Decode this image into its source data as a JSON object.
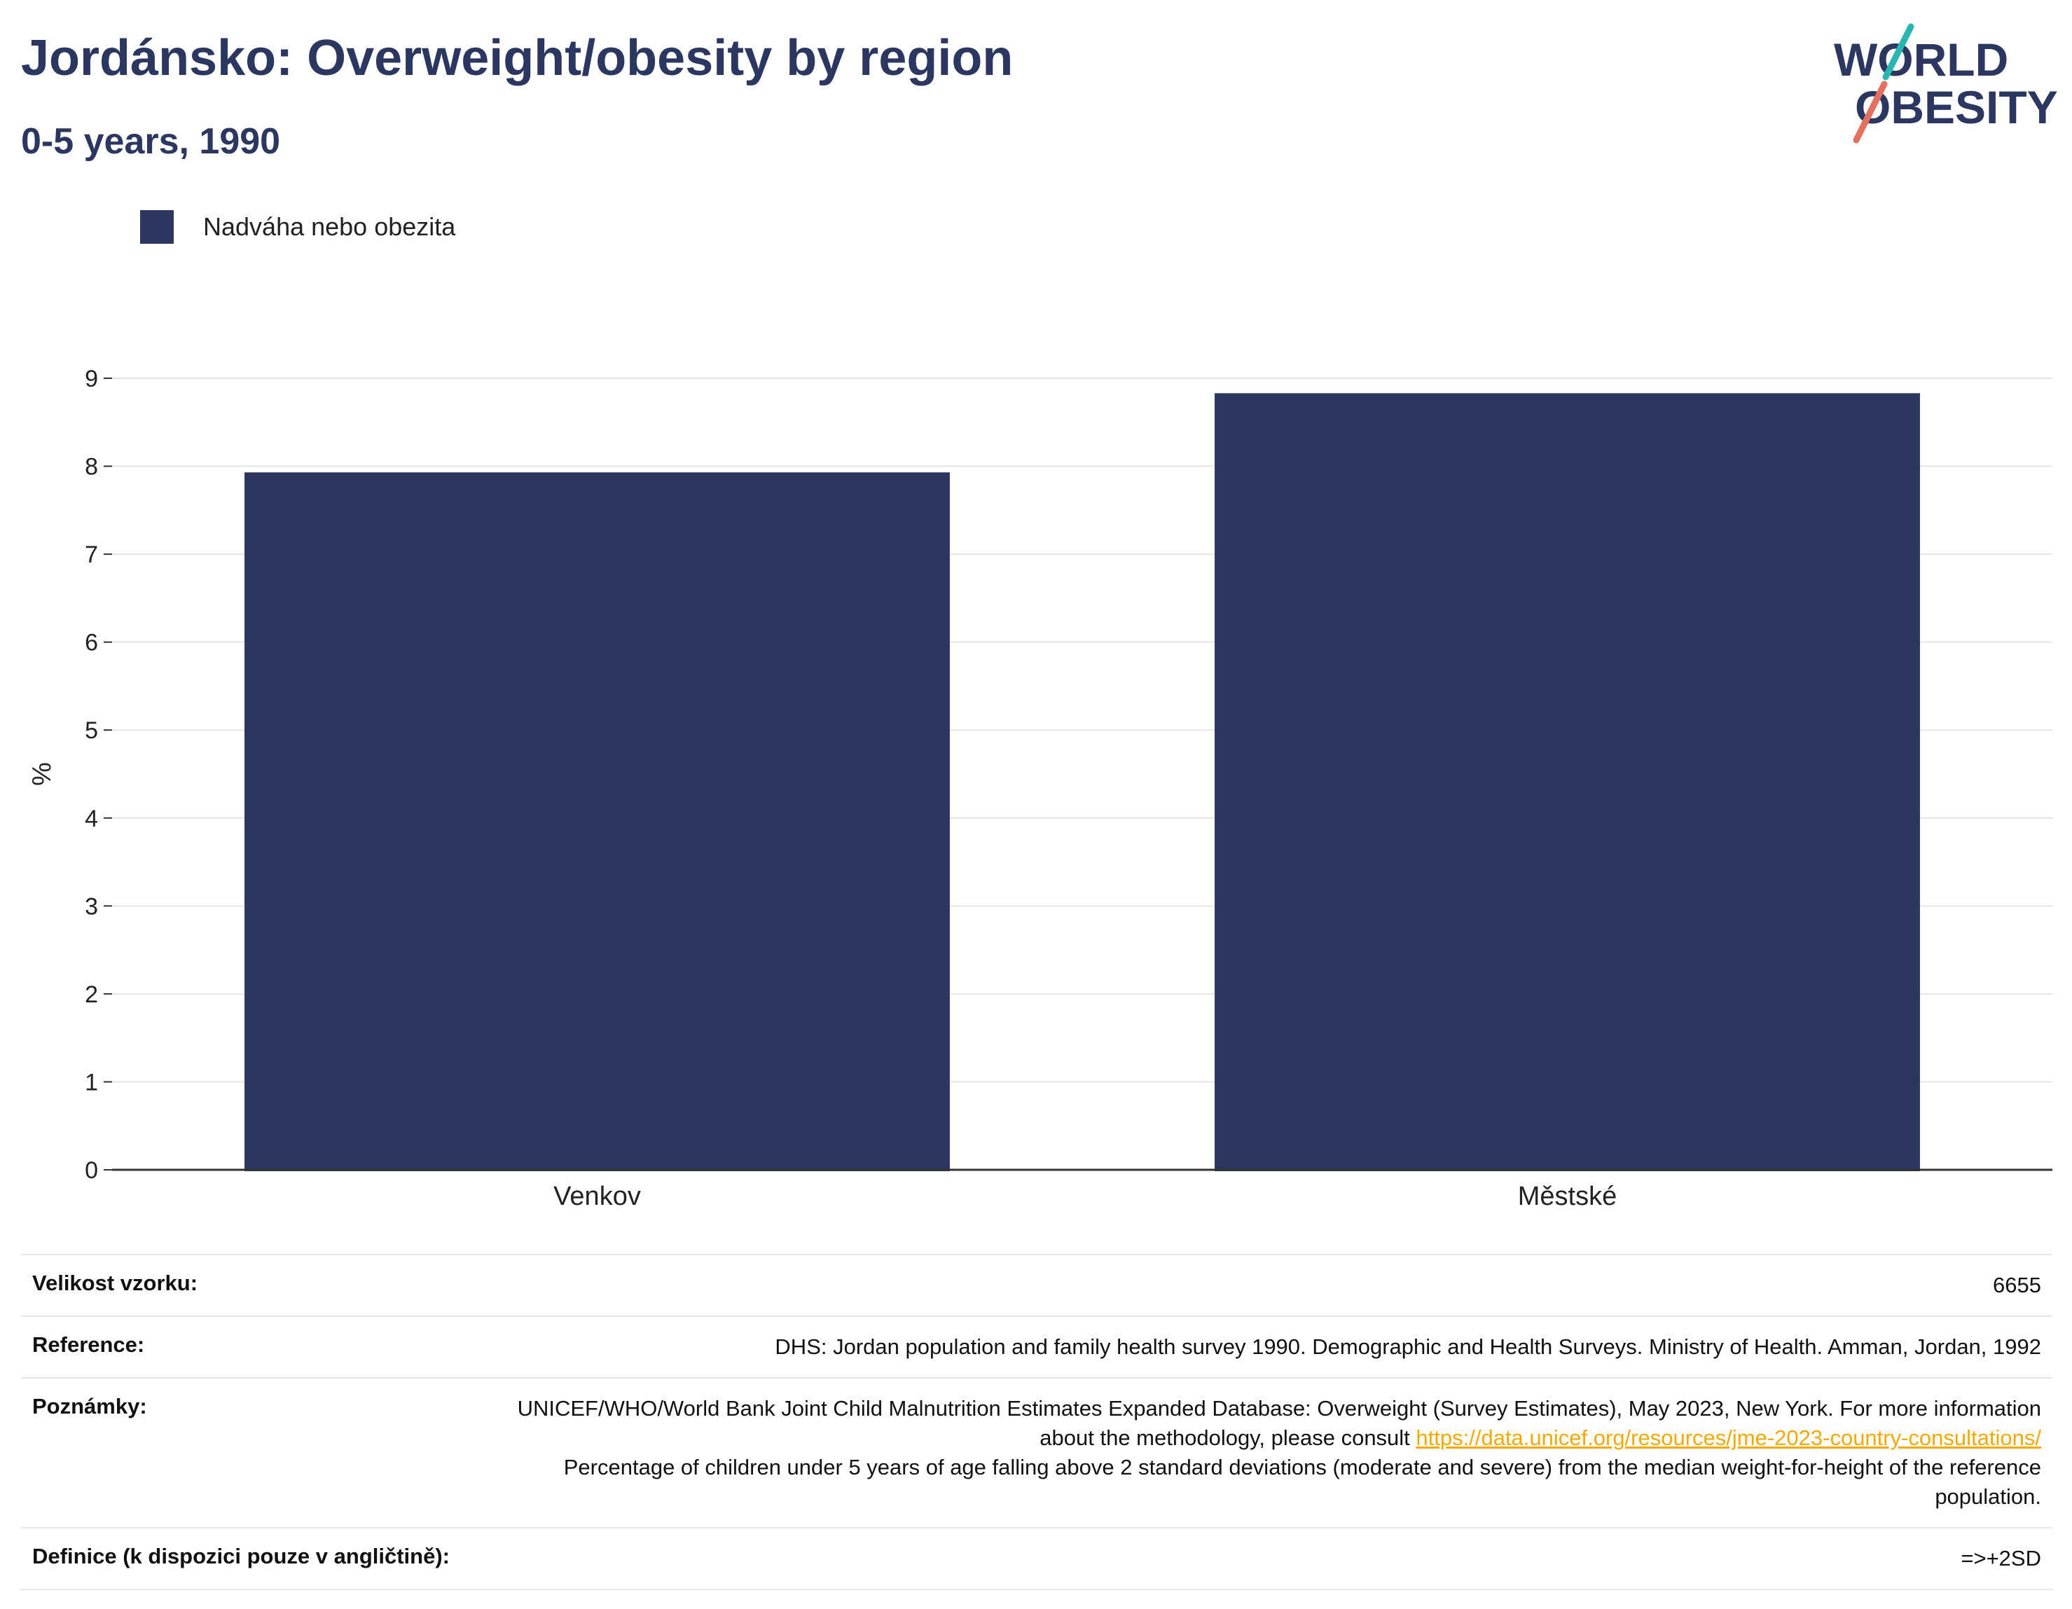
{
  "title": "Jordánsko: Overweight/obesity by region",
  "subtitle": "0-5 years, 1990",
  "logo": {
    "line1": "WORLD",
    "line2": "OBESITY",
    "icon": "world-obesity-logo"
  },
  "colors": {
    "bar": "#2b3661",
    "title": "#2b3661",
    "link": "#f2a900",
    "grid": "#e6e6e6",
    "axis": "#333333"
  },
  "chart_data": {
    "type": "bar",
    "categories": [
      "Venkov",
      "Městské"
    ],
    "series": [
      {
        "name": "Nadváha nebo obezita",
        "values": [
          7.93,
          8.83
        ]
      }
    ],
    "ylabel": "%",
    "xlabel": "",
    "ylim": [
      0,
      9
    ],
    "yticks": [
      "0",
      "1",
      "2",
      "3",
      "4",
      "5",
      "6",
      "7",
      "8",
      "9"
    ],
    "grid": true,
    "legend": "top-left"
  },
  "info": {
    "sample_label": "Velikost vzorku:",
    "sample_value": "6655",
    "reference_label": "Reference:",
    "reference_value": "DHS: Jordan population and family health survey 1990. Demographic and Health Surveys. Ministry of Health. Amman, Jordan, 1992",
    "notes_label": "Poznámky:",
    "notes_text1": "UNICEF/WHO/World Bank Joint Child Malnutrition Estimates Expanded Database: Overweight (Survey Estimates), May 2023, New York. For more information about the methodology, please consult",
    "notes_link": "https://data.unicef.org/resources/jme-2023-country-consultations/",
    "notes_text2": "Percentage of children under 5 years of age falling above 2 standard deviations (moderate and severe) from the median weight-for-height of the reference population.",
    "definition_label": "Definice (k dispozici pouze v angličtině):",
    "definition_value": "=>+2SD"
  }
}
